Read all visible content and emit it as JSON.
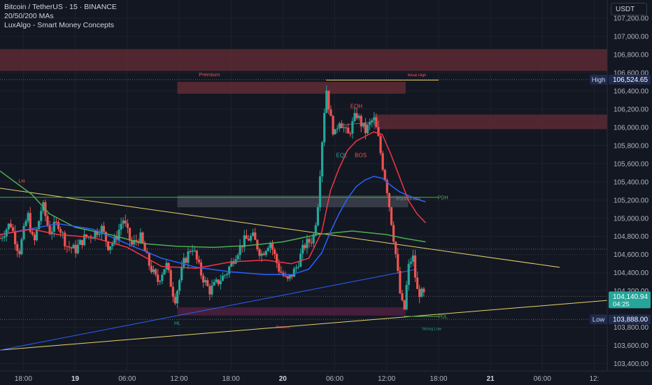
{
  "legend": {
    "symbol": "Bitcoin / TetherUS · 15 · BINANCE",
    "indicator_1": "20/50/200 MAs",
    "indicator_2": "LuxAlgo - Smart Money Concepts"
  },
  "currency_button": "USDT",
  "colors": {
    "background": "#131722",
    "up": "#26a69a",
    "down": "#ef5350",
    "ma20": "#f23645",
    "ma50": "#2962ff",
    "ma200": "#4caf50",
    "trendline": "#e6d36a",
    "zone_premium": "#5c2a33",
    "zone_discount": "#4a1f3d",
    "equilibrium_zone": "#3a3e4a"
  },
  "chart_data": {
    "type": "candlestick",
    "y_ticks": [
      "107,200.00",
      "107,000.00",
      "106,800.00",
      "106,600.00",
      "106,400.00",
      "106,200.00",
      "106,000.00",
      "105,800.00",
      "105,600.00",
      "105,400.00",
      "105,200.00",
      "105,000.00",
      "104,800.00",
      "104,600.00",
      "104,400.00",
      "104,200.00",
      "103,800.00",
      "103,600.00",
      "103,400.00"
    ],
    "y_tick_values": [
      107200,
      107000,
      106800,
      106600,
      106400,
      106200,
      106000,
      105800,
      105600,
      105400,
      105200,
      105000,
      104800,
      104600,
      104400,
      104200,
      103800,
      103600,
      103400
    ],
    "ylim": [
      103320,
      107400
    ],
    "x_ticks": [
      "18:00",
      "19",
      "06:00",
      "12:00",
      "18:00",
      "20",
      "06:00",
      "12:00",
      "18:00",
      "21",
      "06:00",
      "12:"
    ],
    "x_tick_hours": [
      0,
      6,
      12,
      18,
      24,
      30,
      36,
      42,
      48,
      54,
      60,
      66
    ],
    "xlim": [
      -2.7,
      67.5
    ],
    "price_labels": [
      {
        "tag": "High",
        "value": "106,524.65",
        "price": 106524.65
      },
      {
        "tag": "",
        "value": "104,140.94",
        "sub": "04:25",
        "price": 104140.94
      },
      {
        "tag": "Low",
        "value": "103,888.00",
        "price": 103888.0
      }
    ],
    "smc_labels": [
      "Premium",
      "Weak High",
      "EQH",
      "EQL",
      "BOS",
      "Equilibrium",
      "PDH",
      "LH",
      "HL",
      "PDL",
      "Strong Low",
      "Discount"
    ],
    "ohlc_path": [
      [
        -2.7,
        104780
      ],
      [
        -1.5,
        104950
      ],
      [
        -0.5,
        104620
      ],
      [
        0.5,
        105050
      ],
      [
        1.2,
        104700
      ],
      [
        2.2,
        105160
      ],
      [
        3.0,
        104850
      ],
      [
        4.0,
        104950
      ],
      [
        5.0,
        104700
      ],
      [
        6.0,
        104650
      ],
      [
        7.0,
        104780
      ],
      [
        8.0,
        104820
      ],
      [
        9.0,
        104900
      ],
      [
        9.8,
        104700
      ],
      [
        10.6,
        104750
      ],
      [
        11.5,
        105000
      ],
      [
        12.5,
        104700
      ],
      [
        13.5,
        104800
      ],
      [
        14.5,
        104500
      ],
      [
        15.5,
        104300
      ],
      [
        16.5,
        104500
      ],
      [
        17.5,
        104100
      ],
      [
        18.5,
        104500
      ],
      [
        19.5,
        104700
      ],
      [
        20.5,
        104400
      ],
      [
        21.5,
        104200
      ],
      [
        22.5,
        104300
      ],
      [
        23.5,
        104400
      ],
      [
        24.5,
        104600
      ],
      [
        25.5,
        104750
      ],
      [
        26.5,
        104800
      ],
      [
        27.5,
        104600
      ],
      [
        28.5,
        104750
      ],
      [
        29.5,
        104450
      ],
      [
        30.5,
        104300
      ],
      [
        31.5,
        104450
      ],
      [
        32.5,
        104700
      ],
      [
        33.5,
        104780
      ],
      [
        34.0,
        105100
      ],
      [
        34.5,
        105800
      ],
      [
        35.0,
        106450
      ],
      [
        35.5,
        106100
      ],
      [
        36.0,
        105900
      ],
      [
        36.5,
        106100
      ],
      [
        37.5,
        105900
      ],
      [
        38.5,
        106150
      ],
      [
        39.5,
        105950
      ],
      [
        40.5,
        106100
      ],
      [
        41.0,
        105900
      ],
      [
        41.5,
        105600
      ],
      [
        42.0,
        105350
      ],
      [
        42.5,
        105000
      ],
      [
        43.0,
        104650
      ],
      [
        43.5,
        104200
      ],
      [
        44.0,
        103950
      ],
      [
        44.5,
        104450
      ],
      [
        45.0,
        104600
      ],
      [
        45.5,
        104200
      ],
      [
        46.5,
        104141
      ]
    ],
    "ma20": [
      [
        -2.7,
        104820
      ],
      [
        1,
        104880
      ],
      [
        4,
        104820
      ],
      [
        8,
        104790
      ],
      [
        12,
        104680
      ],
      [
        16,
        104470
      ],
      [
        20,
        104450
      ],
      [
        24,
        104520
      ],
      [
        28,
        104540
      ],
      [
        31,
        104500
      ],
      [
        33,
        104560
      ],
      [
        34.5,
        104850
      ],
      [
        35.5,
        105300
      ],
      [
        36.5,
        105550
      ],
      [
        37.5,
        105750
      ],
      [
        38.5,
        105850
      ],
      [
        39.5,
        105900
      ],
      [
        40.5,
        105950
      ],
      [
        41.5,
        105920
      ],
      [
        42.5,
        105700
      ],
      [
        43.5,
        105450
      ],
      [
        44.5,
        105200
      ],
      [
        45.5,
        105050
      ],
      [
        46.5,
        104950
      ]
    ],
    "ma50": [
      [
        -2.7,
        104820
      ],
      [
        4,
        104940
      ],
      [
        8,
        104880
      ],
      [
        12,
        104720
      ],
      [
        16,
        104560
      ],
      [
        20,
        104460
      ],
      [
        24,
        104410
      ],
      [
        28,
        104380
      ],
      [
        31,
        104380
      ],
      [
        33,
        104440
      ],
      [
        34.5,
        104620
      ],
      [
        35.5,
        104850
      ],
      [
        36.5,
        105050
      ],
      [
        37.5,
        105220
      ],
      [
        38.5,
        105350
      ],
      [
        39.5,
        105420
      ],
      [
        40.5,
        105460
      ],
      [
        41.5,
        105440
      ],
      [
        42.5,
        105360
      ],
      [
        43.5,
        105290
      ],
      [
        44.5,
        105250
      ],
      [
        45.5,
        105210
      ],
      [
        46.5,
        105180
      ]
    ],
    "ma200": [
      [
        -2.7,
        105520
      ],
      [
        1,
        105260
      ],
      [
        3,
        105050
      ],
      [
        6,
        104900
      ],
      [
        10,
        104820
      ],
      [
        14,
        104720
      ],
      [
        18,
        104690
      ],
      [
        22,
        104680
      ],
      [
        26,
        104700
      ],
      [
        30,
        104740
      ],
      [
        34,
        104820
      ],
      [
        38,
        104860
      ],
      [
        42,
        104820
      ],
      [
        44,
        104780
      ],
      [
        46.5,
        104740
      ]
    ]
  }
}
